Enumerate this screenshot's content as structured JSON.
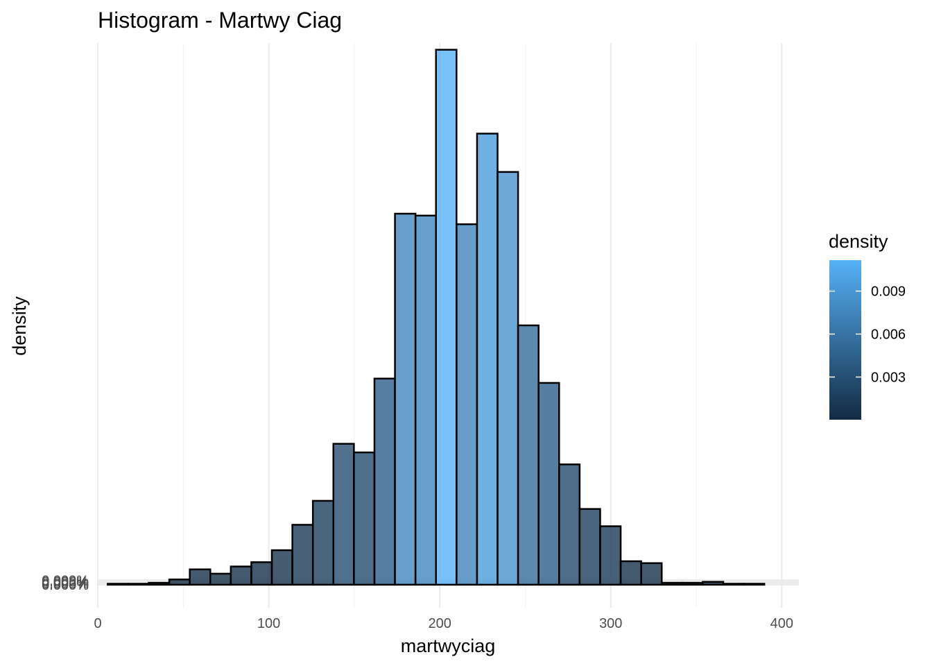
{
  "chart_data": {
    "type": "bar",
    "title": "Histogram - Martwy Ciag",
    "xlabel": "martwyciag",
    "ylabel": "density",
    "xlim": [
      0,
      410
    ],
    "ylim": [
      -0.00048,
      0.0113
    ],
    "x_ticks": [
      0,
      100,
      200,
      300,
      400
    ],
    "x_tick_labels": [
      "0",
      "100",
      "200",
      "300",
      "400"
    ],
    "y_ticks": [
      0,
      3e-05,
      6e-05,
      9e-05
    ],
    "y_tick_labels": [
      "0.000%",
      "0.003%",
      "0.006%",
      "0.009%"
    ],
    "grid": true,
    "bins": {
      "left_edges": [
        5.8,
        17.8,
        29.8,
        41.8,
        53.8,
        65.8,
        77.8,
        89.8,
        101.8,
        113.8,
        125.8,
        137.8,
        149.8,
        161.8,
        173.8,
        185.8,
        197.8,
        209.8,
        221.8,
        233.8,
        245.8,
        257.8,
        269.8,
        281.8,
        293.8,
        305.8,
        317.8,
        329.8,
        341.8,
        353.8,
        365.8,
        377.8
      ],
      "width": 12,
      "density": [
        2e-05,
        2e-05,
        4e-05,
        0.00011,
        0.00032,
        0.00023,
        0.00038,
        0.00047,
        0.00072,
        0.00125,
        0.00175,
        0.00294,
        0.00276,
        0.0043,
        0.00774,
        0.0077,
        0.01116,
        0.00752,
        0.00941,
        0.00861,
        0.00541,
        0.00421,
        0.00251,
        0.00158,
        0.00122,
        0.00049,
        0.00045,
        4e-05,
        4e-05,
        6e-05,
        2e-05,
        2e-05
      ]
    },
    "legend": {
      "title": "density",
      "position": "right",
      "min": 2e-05,
      "max": 0.01116,
      "ticks": [
        0.003,
        0.006,
        0.009
      ],
      "tick_labels": [
        "0.003",
        "0.006",
        "0.009"
      ],
      "color_low": "#132B43",
      "color_high": "#56B1F7"
    }
  }
}
